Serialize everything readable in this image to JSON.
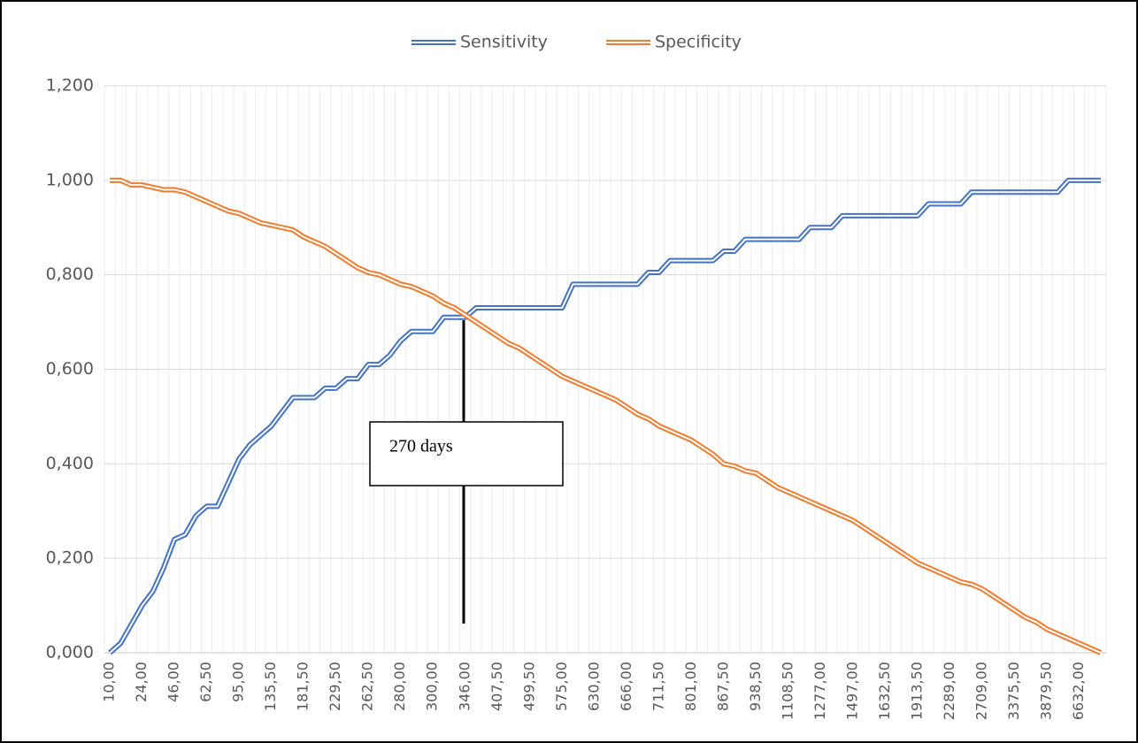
{
  "chart_data": {
    "type": "line",
    "categories": [
      "10,00",
      null,
      null,
      "24,00",
      null,
      null,
      "46,00",
      null,
      null,
      "62,50",
      null,
      null,
      "95,00",
      null,
      null,
      "135,50",
      null,
      null,
      "181,50",
      null,
      null,
      "229,50",
      null,
      null,
      "262,50",
      null,
      null,
      "280,00",
      null,
      null,
      "300,00",
      null,
      null,
      "346,00",
      null,
      null,
      "407,50",
      null,
      null,
      "499,50",
      null,
      null,
      "575,00",
      null,
      null,
      "630,00",
      null,
      null,
      "666,00",
      null,
      null,
      "711,50",
      null,
      null,
      "801,00",
      null,
      null,
      "867,50",
      null,
      null,
      "938,50",
      null,
      null,
      "1108,50",
      null,
      null,
      "1277,00",
      null,
      null,
      "1497,00",
      null,
      null,
      "1632,50",
      null,
      null,
      "1913,50",
      null,
      null,
      "2289,00",
      null,
      null,
      "2709,00",
      null,
      null,
      "3375,50",
      null,
      null,
      "3879,50",
      null,
      null,
      "6632,00",
      null,
      null
    ],
    "series": [
      {
        "name": "Sensitivity",
        "color": "#4472c4",
        "values": [
          0,
          0.02,
          0.06,
          0.1,
          0.13,
          0.18,
          0.24,
          0.25,
          0.29,
          0.31,
          0.31,
          0.36,
          0.41,
          0.44,
          0.46,
          0.48,
          0.51,
          0.54,
          0.54,
          0.54,
          0.56,
          0.56,
          0.58,
          0.58,
          0.61,
          0.61,
          0.63,
          0.66,
          0.68,
          0.68,
          0.68,
          0.71,
          0.71,
          0.71,
          0.73,
          0.73,
          0.73,
          0.73,
          0.73,
          0.73,
          0.73,
          0.73,
          0.73,
          0.78,
          0.78,
          0.78,
          0.78,
          0.78,
          0.78,
          0.78,
          0.805,
          0.805,
          0.83,
          0.83,
          0.83,
          0.83,
          0.83,
          0.85,
          0.85,
          0.875,
          0.875,
          0.875,
          0.875,
          0.875,
          0.875,
          0.9,
          0.9,
          0.9,
          0.925,
          0.925,
          0.925,
          0.925,
          0.925,
          0.925,
          0.925,
          0.925,
          0.95,
          0.95,
          0.95,
          0.95,
          0.975,
          0.975,
          0.975,
          0.975,
          0.975,
          0.975,
          0.975,
          0.975,
          0.975,
          1,
          1,
          1,
          1
        ]
      },
      {
        "name": "Specificity",
        "color": "#ed7d31",
        "values": [
          1,
          1,
          0.99,
          0.99,
          0.985,
          0.98,
          0.98,
          0.975,
          0.965,
          0.955,
          0.945,
          0.935,
          0.93,
          0.92,
          0.91,
          0.905,
          0.9,
          0.895,
          0.88,
          0.87,
          0.86,
          0.845,
          0.83,
          0.815,
          0.805,
          0.8,
          0.79,
          0.78,
          0.775,
          0.765,
          0.755,
          0.74,
          0.73,
          0.715,
          0.7,
          0.685,
          0.67,
          0.655,
          0.645,
          0.63,
          0.615,
          0.6,
          0.585,
          0.575,
          0.565,
          0.555,
          0.545,
          0.535,
          0.52,
          0.505,
          0.495,
          0.48,
          0.47,
          0.46,
          0.45,
          0.435,
          0.42,
          0.4,
          0.395,
          0.385,
          0.38,
          0.365,
          0.35,
          0.34,
          0.33,
          0.32,
          0.31,
          0.3,
          0.29,
          0.28,
          0.265,
          0.25,
          0.235,
          0.22,
          0.205,
          0.19,
          0.18,
          0.17,
          0.16,
          0.15,
          0.145,
          0.135,
          0.12,
          0.105,
          0.09,
          0.075,
          0.065,
          0.05,
          0.04,
          0.03,
          0.02,
          0.01,
          0
        ]
      }
    ],
    "ylim": [
      0,
      1.2
    ],
    "yticks": [
      {
        "value": 0,
        "label": "0,000"
      },
      {
        "value": 0.2,
        "label": "0,200"
      },
      {
        "value": 0.4,
        "label": "0,400"
      },
      {
        "value": 0.6,
        "label": "0,600"
      },
      {
        "value": 0.8,
        "label": "0,800"
      },
      {
        "value": 1,
        "label": "1,000"
      },
      {
        "value": 1.2,
        "label": "1,200"
      }
    ],
    "grid": true,
    "legend": "top",
    "annotations": [
      {
        "text": "270 days"
      }
    ]
  }
}
